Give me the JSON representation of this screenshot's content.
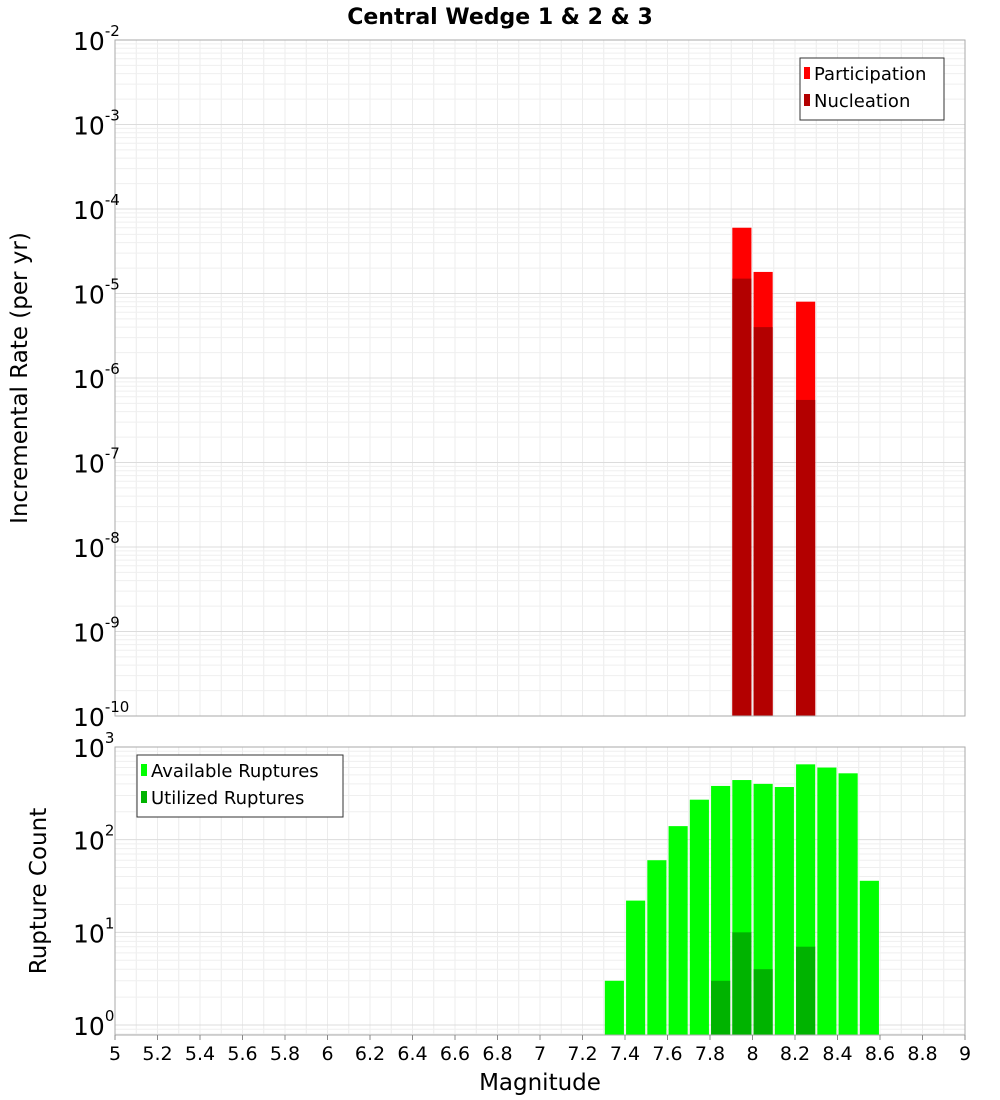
{
  "chart_data": [
    {
      "type": "bar",
      "title": "Central Wedge 1 & 2 & 3",
      "ylabel": "Incremental Rate (per yr)",
      "yscale": "log",
      "ylim": [
        1e-10,
        0.01
      ],
      "ytick_base": "10",
      "ytick_exponents": [
        "-10",
        "-9",
        "-8",
        "-7",
        "-6",
        "-5",
        "-4",
        "-3",
        "-2"
      ],
      "xlim": [
        5,
        9
      ],
      "bar_width": 0.09,
      "legend_position": "top-right",
      "grid": true,
      "series": [
        {
          "name": "Participation",
          "color": "#ff0000",
          "x": [
            7.95,
            8.05,
            8.25
          ],
          "values": [
            6e-05,
            1.8e-05,
            8e-06
          ]
        },
        {
          "name": "Nucleation",
          "color": "#b30000",
          "x": [
            7.95,
            8.05,
            8.25
          ],
          "values": [
            1.5e-05,
            4e-06,
            5.5e-07
          ]
        }
      ]
    },
    {
      "type": "bar",
      "title": "",
      "xlabel": "Magnitude",
      "ylabel": "Rupture Count",
      "yscale": "log",
      "ylim": [
        0.78,
        1000
      ],
      "ytick_base": "10",
      "ytick_exponents": [
        "0",
        "1",
        "2",
        "3"
      ],
      "xlim": [
        5,
        9
      ],
      "xticks": [
        "5",
        "5.2",
        "5.4",
        "5.6",
        "5.8",
        "6",
        "6.2",
        "6.4",
        "6.6",
        "6.8",
        "7",
        "7.2",
        "7.4",
        "7.6",
        "7.8",
        "8",
        "8.2",
        "8.4",
        "8.6",
        "8.8",
        "9"
      ],
      "bar_width": 0.09,
      "legend_position": "top-left",
      "grid": true,
      "series": [
        {
          "name": "Available Ruptures",
          "color": "#00ff00",
          "x": [
            7.35,
            7.45,
            7.55,
            7.65,
            7.75,
            7.85,
            7.95,
            8.05,
            8.15,
            8.25,
            8.35,
            8.45,
            8.55
          ],
          "values": [
            3,
            22,
            60,
            140,
            270,
            380,
            440,
            400,
            370,
            650,
            600,
            520,
            36
          ]
        },
        {
          "name": "Utilized Ruptures",
          "color": "#00b300",
          "x": [
            7.85,
            7.95,
            8.05,
            8.25
          ],
          "values": [
            3,
            10,
            4,
            7
          ]
        }
      ]
    }
  ]
}
